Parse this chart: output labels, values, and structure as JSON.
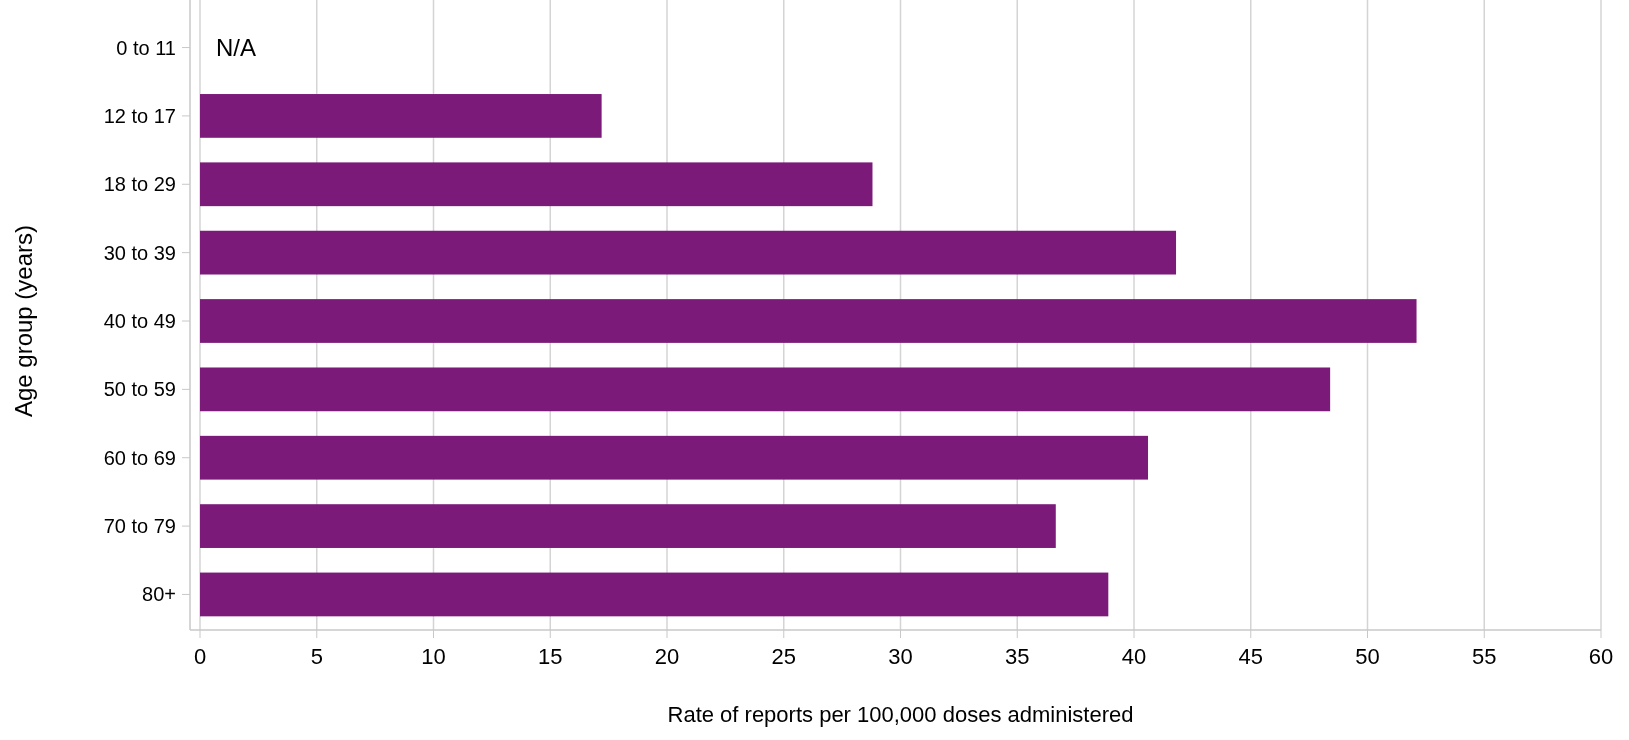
{
  "chart_data": {
    "type": "bar",
    "orientation": "horizontal",
    "xlabel": "Rate of reports per 100,000 doses administered",
    "ylabel": "Age group (years)",
    "categories": [
      "0 to 11",
      "12 to 17",
      "18 to 29",
      "30 to 39",
      "40 to 49",
      "50 to 59",
      "60 to 69",
      "70 to 79",
      "80+"
    ],
    "values": [
      null,
      17.2,
      28.8,
      41.8,
      52.1,
      48.4,
      40.6,
      36.65,
      38.9
    ],
    "color": "#7b1a78",
    "xlim": [
      0,
      60
    ],
    "xticks": [
      0,
      5,
      10,
      15,
      20,
      25,
      30,
      35,
      40,
      45,
      50,
      55,
      60
    ],
    "grid": "x",
    "annotations": [
      "N/A"
    ]
  }
}
